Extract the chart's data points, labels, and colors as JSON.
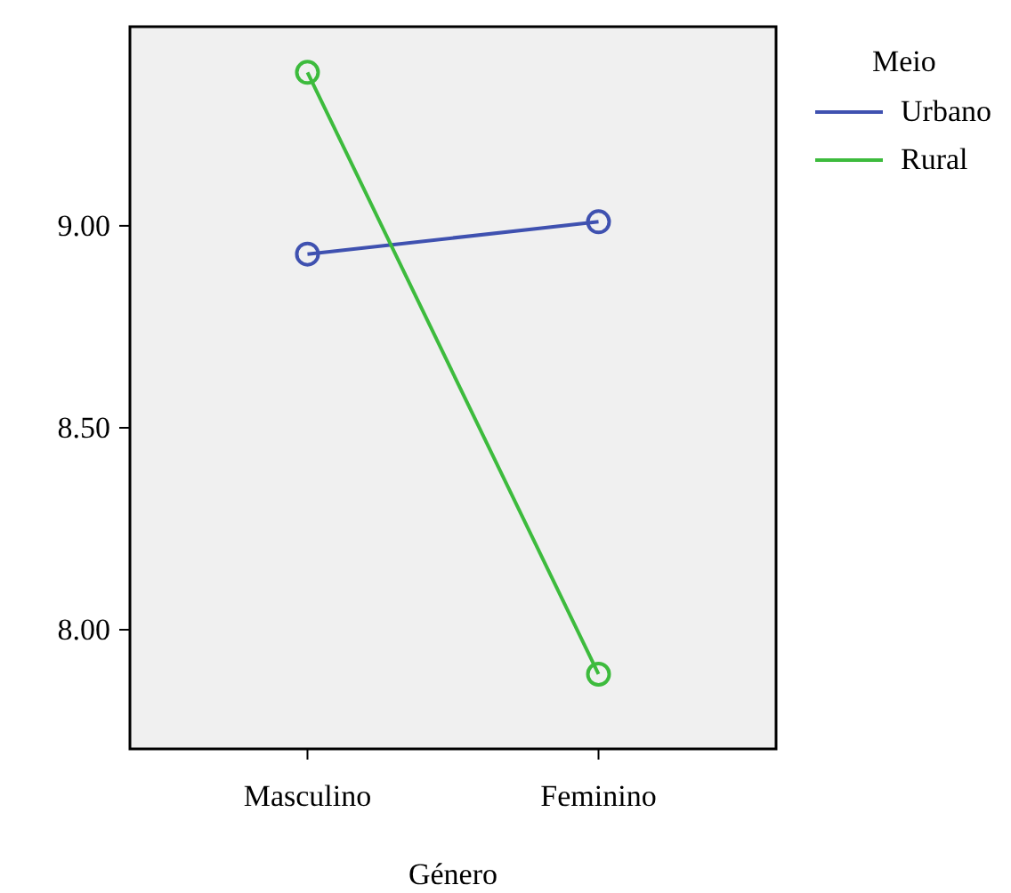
{
  "chart_data": {
    "type": "line",
    "xlabel": "Género",
    "legend_title": "Meio",
    "categories": [
      "Masculino",
      "Feminino"
    ],
    "series": [
      {
        "name": "Urbano",
        "color": "#3f51b0",
        "values": [
          8.93,
          9.01
        ]
      },
      {
        "name": "Rural",
        "color": "#3dbb3d",
        "values": [
          9.38,
          7.89
        ]
      }
    ],
    "ylim": [
      7.705,
      9.493
    ],
    "yticks": [
      {
        "value": 8,
        "label": "8.00"
      },
      {
        "value": 8.5,
        "label": "8.50"
      },
      {
        "value": 9,
        "label": "9.00"
      }
    ],
    "grid": false,
    "legend": "top right",
    "marker": "circle",
    "line_style": "solid"
  }
}
